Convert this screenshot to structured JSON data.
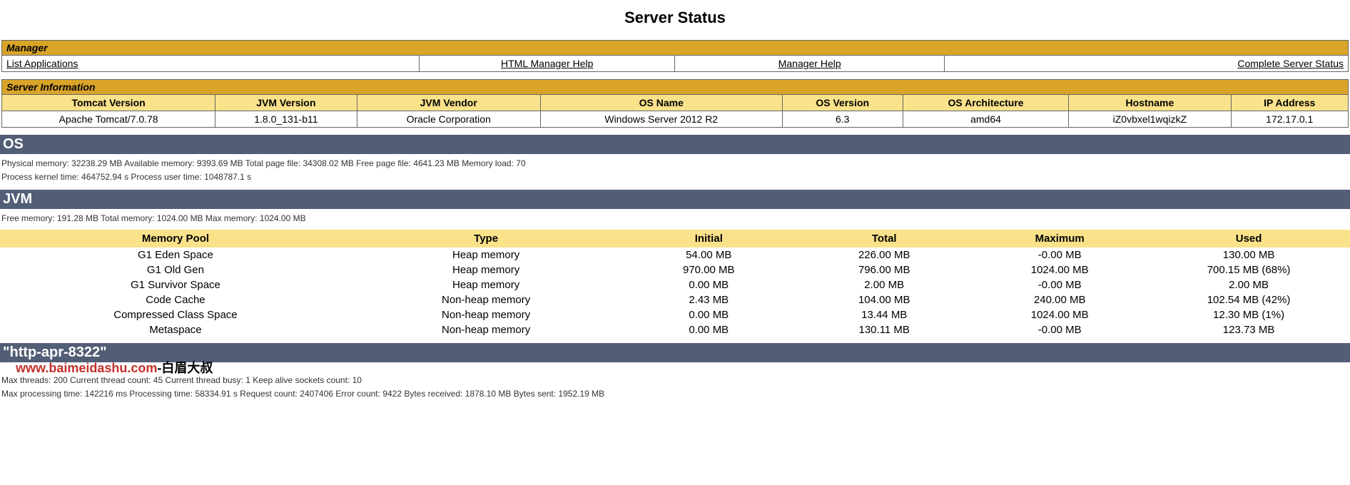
{
  "title": "Server Status",
  "manager": {
    "header": "Manager",
    "links": [
      {
        "label": "List Applications",
        "align": "left"
      },
      {
        "label": "HTML Manager Help",
        "align": "center"
      },
      {
        "label": "Manager Help",
        "align": "center"
      },
      {
        "label": "Complete Server Status",
        "align": "right"
      }
    ]
  },
  "serverInfo": {
    "header": "Server Information",
    "columns": [
      "Tomcat Version",
      "JVM Version",
      "JVM Vendor",
      "OS Name",
      "OS Version",
      "OS Architecture",
      "Hostname",
      "IP Address"
    ],
    "values": [
      "Apache Tomcat/7.0.78",
      "1.8.0_131-b11",
      "Oracle Corporation",
      "Windows Server 2012 R2",
      "6.3",
      "amd64",
      "iZ0vbxel1wqizkZ",
      "172.17.0.1"
    ]
  },
  "os": {
    "title": "OS",
    "line1": "Physical memory: 32238.29 MB Available memory: 9393.69 MB Total page file: 34308.02 MB Free page file: 4641.23 MB Memory load: 70",
    "line2": "Process kernel time: 464752.94 s Process user time: 1048787.1 s"
  },
  "jvm": {
    "title": "JVM",
    "summary": "Free memory: 191.28 MB Total memory: 1024.00 MB Max memory: 1024.00 MB",
    "columns": [
      "Memory Pool",
      "Type",
      "Initial",
      "Total",
      "Maximum",
      "Used"
    ],
    "rows": [
      [
        "G1 Eden Space",
        "Heap memory",
        "54.00 MB",
        "226.00 MB",
        "-0.00 MB",
        "130.00 MB"
      ],
      [
        "G1 Old Gen",
        "Heap memory",
        "970.00 MB",
        "796.00 MB",
        "1024.00 MB",
        "700.15 MB (68%)"
      ],
      [
        "G1 Survivor Space",
        "Heap memory",
        "0.00 MB",
        "2.00 MB",
        "-0.00 MB",
        "2.00 MB"
      ],
      [
        "Code Cache",
        "Non-heap memory",
        "2.43 MB",
        "104.00 MB",
        "240.00 MB",
        "102.54 MB (42%)"
      ],
      [
        "Compressed Class Space",
        "Non-heap memory",
        "0.00 MB",
        "13.44 MB",
        "1024.00 MB",
        "12.30 MB (1%)"
      ],
      [
        "Metaspace",
        "Non-heap memory",
        "0.00 MB",
        "130.11 MB",
        "-0.00 MB",
        "123.73 MB"
      ]
    ]
  },
  "connector": {
    "title": "\"http-apr-8322\"",
    "watermark_en": "www.baimeidashu.com",
    "watermark_cn": "-白眉大叔",
    "line1": "Max threads: 200 Current thread count: 45 Current thread busy: 1 Keep alive sockets count: 10",
    "line2": "Max processing time: 142216 ms Processing time: 58334.91 s Request count: 2407406 Error count: 9422 Bytes received: 1878.10 MB Bytes sent: 1952.19 MB"
  },
  "colors": {
    "accent_gold": "#d9a428",
    "accent_yellow": "#fae28b",
    "band": "#525d76",
    "border": "#666666"
  }
}
